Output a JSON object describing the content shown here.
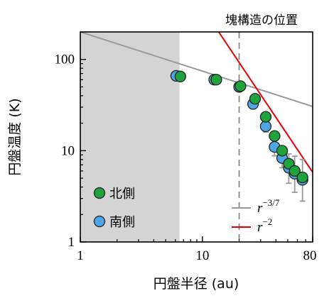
{
  "chart_data": {
    "type": "scatter",
    "title": "",
    "xlabel": "円盤半径 (au)",
    "ylabel": "円盤温度 (K)",
    "xscale": "log",
    "yscale": "log",
    "xlim": [
      1,
      80
    ],
    "ylim": [
      1,
      200
    ],
    "x_ticks": [
      1,
      10,
      80
    ],
    "x_tick_labels": [
      "1",
      "10",
      "80"
    ],
    "y_ticks": [
      1,
      10,
      100
    ],
    "y_tick_labels": [
      "1",
      "10",
      "100"
    ],
    "shaded_region": {
      "x": [
        1,
        6.5
      ],
      "color": "#d4d4d4"
    },
    "annotation": {
      "text": "塊構造の位置",
      "x": 20,
      "line_color": "#888888"
    },
    "series": [
      {
        "name": "北側",
        "color": "#1fa33c",
        "points": [
          {
            "x": 6.6,
            "y": 65
          },
          {
            "x": 13.0,
            "y": 60
          },
          {
            "x": 20.5,
            "y": 51
          },
          {
            "x": 27.0,
            "y": 37
          },
          {
            "x": 33.0,
            "y": 23.5
          },
          {
            "x": 39.0,
            "y": 14.5
          },
          {
            "x": 45.0,
            "y": 10.0
          },
          {
            "x": 51.0,
            "y": 7.2
          },
          {
            "x": 57.0,
            "y": 6.0
          },
          {
            "x": 66.0,
            "y": 5.1
          }
        ]
      },
      {
        "name": "南側",
        "color": "#4fa6e6",
        "points": [
          {
            "x": 6.1,
            "y": 66,
            "err": [
              66,
              66
            ]
          },
          {
            "x": 12.5,
            "y": 60,
            "err": [
              60,
              60
            ]
          },
          {
            "x": 20.0,
            "y": 50,
            "err": [
              48,
              53
            ]
          },
          {
            "x": 26.0,
            "y": 32.5,
            "err": [
              30,
              36
            ]
          },
          {
            "x": 33.0,
            "y": 18.5,
            "err": [
              16,
              21
            ]
          },
          {
            "x": 39.0,
            "y": 11.0,
            "err": [
              8.8,
              13.5
            ]
          },
          {
            "x": 45.0,
            "y": 8.3,
            "err": [
              6.5,
              10.5
            ]
          },
          {
            "x": 51.0,
            "y": 6.5,
            "err": [
              4.4,
              9.2
            ]
          },
          {
            "x": 57.0,
            "y": 5.6,
            "err": [
              3.5,
              8.7
            ]
          },
          {
            "x": 66.0,
            "y": 4.8,
            "err": [
              2.8,
              8.0
            ]
          }
        ]
      }
    ],
    "models": [
      {
        "name": "r^{-3/7}",
        "base": "r",
        "exponent": "−3/7",
        "color": "#999999",
        "x": [
          1,
          80
        ],
        "y": [
          200,
          30.5
        ]
      },
      {
        "name": "r^{-2}",
        "base": "r",
        "exponent": "−2",
        "color": "#e60000",
        "x": [
          13.6,
          80
        ],
        "y": [
          200,
          5.8
        ]
      }
    ],
    "legend": {
      "placement": "bottom-left"
    },
    "model_legend": {
      "placement": "bottom-right"
    }
  }
}
